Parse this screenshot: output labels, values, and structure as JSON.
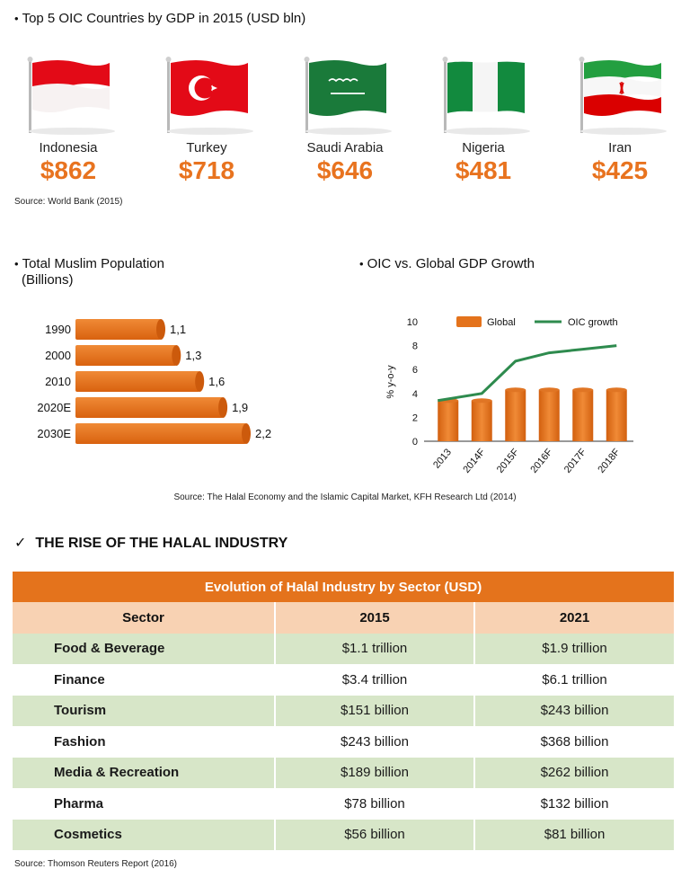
{
  "top_countries": {
    "title": "Top 5 OIC Countries by GDP in 2015 (USD bln)",
    "source": "Source: World Bank (2015)",
    "countries": [
      {
        "name": "Indonesia",
        "gdp": "$862"
      },
      {
        "name": "Turkey",
        "gdp": "$718"
      },
      {
        "name": "Saudi Arabia",
        "gdp": "$646"
      },
      {
        "name": "Nigeria",
        "gdp": "$481"
      },
      {
        "name": "Iran",
        "gdp": "$425"
      }
    ]
  },
  "population": {
    "title_line1": "Total Muslim Population",
    "title_line2": "(Billions)"
  },
  "growth": {
    "title": "OIC vs. Global GDP Growth"
  },
  "middle_source": "Source: The Halal Economy and the Islamic Capital Market, KFH Research Ltd (2014)",
  "halal": {
    "heading": "THE RISE OF THE HALAL INDUSTRY",
    "check_glyph": "✓",
    "table_title": "Evolution of Halal Industry by Sector (USD)",
    "columns": [
      "Sector",
      "2015",
      "2021"
    ],
    "rows": [
      [
        "Food & Beverage",
        "$1.1 trillion",
        "$1.9 trillion"
      ],
      [
        "Finance",
        "$3.4 trillion",
        "$6.1 trillion"
      ],
      [
        "Tourism",
        "$151 billion",
        "$243 billion"
      ],
      [
        "Fashion",
        "$243 billion",
        "$368 billion"
      ],
      [
        "Media & Recreation",
        "$189 billion",
        "$262 billion"
      ],
      [
        "Pharma",
        "$78 billion",
        "$132 billion"
      ],
      [
        "Cosmetics",
        "$56 billion",
        "$81 billion"
      ]
    ],
    "source": "Source: Thomson Reuters Report (2016)"
  },
  "colors": {
    "orange": "#e4731c",
    "green": "#2e8b4e",
    "shade": "#d7e6c8",
    "peach": "#f8d2b3"
  },
  "chart_data": [
    {
      "type": "bar",
      "orientation": "horizontal",
      "title": "Total Muslim Population (Billions)",
      "categories": [
        "1990",
        "2000",
        "2010",
        "2020E",
        "2030E"
      ],
      "values": [
        1.1,
        1.3,
        1.6,
        1.9,
        2.2
      ],
      "value_labels": [
        "1,1",
        "1,3",
        "1,6",
        "1,9",
        "2,2"
      ],
      "xlim": [
        0,
        2.2
      ]
    },
    {
      "type": "bar",
      "title": "OIC vs. Global GDP Growth",
      "categories": [
        "2013",
        "2014F",
        "2015F",
        "2016F",
        "2017F",
        "2018F"
      ],
      "series": [
        {
          "name": "Global",
          "type": "bar",
          "values": [
            3.4,
            3.4,
            4.3,
            4.3,
            4.3,
            4.3
          ]
        },
        {
          "name": "OIC growth",
          "type": "line",
          "values": [
            3.4,
            4.0,
            6.7,
            7.4,
            7.7,
            8.0
          ]
        }
      ],
      "ylabel": "% y-o-y",
      "ylim": [
        0,
        10
      ],
      "yticks": [
        0,
        2,
        4,
        6,
        8,
        10
      ]
    }
  ]
}
